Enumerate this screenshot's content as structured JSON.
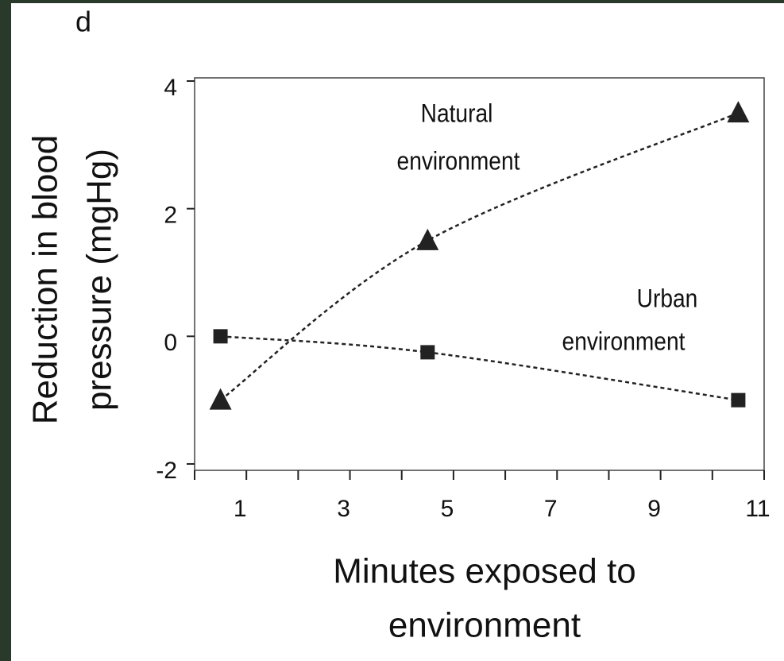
{
  "chart_data": {
    "type": "line",
    "panel_label": "d",
    "xlabel": [
      "Minutes exposed to",
      "environment"
    ],
    "ylabel": [
      "Reduction in blood",
      "pressure (mgHg)"
    ],
    "x": [
      0.5,
      4.5,
      10.5
    ],
    "series": [
      {
        "label_lines": [
          "Natural",
          "environment"
        ],
        "marker": "triangle",
        "color": "#222222",
        "values": [
          -1,
          1.5,
          3.5
        ]
      },
      {
        "label_lines": [
          "Urban",
          "environment"
        ],
        "marker": "square",
        "color": "#222222",
        "values": [
          0,
          -0.25,
          -1
        ]
      }
    ],
    "xlim": [
      0,
      11
    ],
    "xticks": [
      1,
      3,
      5,
      7,
      9,
      11
    ],
    "xminor_ticks": [
      0,
      2,
      4,
      6,
      8,
      10
    ],
    "ylim": [
      -2.1,
      4.05
    ],
    "yticks": [
      -2,
      0,
      2,
      4
    ],
    "grid": false
  }
}
